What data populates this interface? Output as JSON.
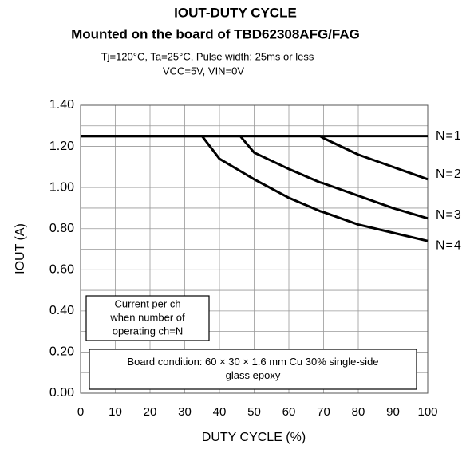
{
  "chart_data": {
    "type": "line",
    "title": [
      "IOUT-DUTY CYCLE",
      "Mounted on the board of TBD62308AFG/FAG"
    ],
    "subtitle": [
      "Tj=120°C, Ta=25°C, Pulse width: 25ms or less",
      "VCC=5V, VIN=0V"
    ],
    "x_label": "DUTY CYCLE (%)",
    "y_label": "IOUT (A)",
    "x": [
      0,
      35,
      40,
      46,
      50,
      60,
      69,
      70,
      80,
      90,
      100
    ],
    "series": [
      {
        "name": "N=1",
        "color": "#000000",
        "values": [
          1.25,
          1.25,
          1.25,
          1.25,
          1.25,
          1.25,
          1.25,
          1.25,
          1.25,
          1.25,
          1.25
        ]
      },
      {
        "name": "N=2",
        "color": "#000000",
        "values": [
          1.25,
          1.25,
          1.25,
          1.25,
          1.25,
          1.25,
          1.25,
          1.24,
          1.16,
          1.1,
          1.04
        ]
      },
      {
        "name": "N=3",
        "color": "#000000",
        "values": [
          1.25,
          1.25,
          1.25,
          1.25,
          1.17,
          1.09,
          1.025,
          1.02,
          0.96,
          0.9,
          0.85
        ]
      },
      {
        "name": "N=4",
        "color": "#000000",
        "values": [
          1.25,
          1.25,
          1.14,
          1.08,
          1.04,
          0.95,
          0.885,
          0.88,
          0.82,
          0.78,
          0.74
        ]
      }
    ],
    "xlim": [
      0,
      100
    ],
    "xticks": [
      0,
      10,
      20,
      30,
      40,
      50,
      60,
      70,
      80,
      90,
      100
    ],
    "ylim": [
      0,
      1.4
    ],
    "yticks": [
      {
        "value": 0,
        "label": "0.00"
      },
      {
        "value": 0.2,
        "label": "0.20"
      },
      {
        "value": 0.4,
        "label": "0.40"
      },
      {
        "value": 0.6,
        "label": "0.60"
      },
      {
        "value": 0.8,
        "label": "0.80"
      },
      {
        "value": 1.0,
        "label": "1.00"
      },
      {
        "value": 1.2,
        "label": "1.20"
      },
      {
        "value": 1.4,
        "label": "1.40"
      }
    ],
    "yminor_ticks": [
      0.1,
      0.3,
      0.5,
      0.7,
      0.9,
      1.1,
      1.3
    ],
    "grid": true,
    "annotations": [
      [
        "Current per ch",
        "when number of",
        "operating ch=N"
      ],
      [
        "Board condition: 60 × 30 × 1.6 mm Cu 30% single-side",
        "glass epoxy"
      ]
    ]
  }
}
